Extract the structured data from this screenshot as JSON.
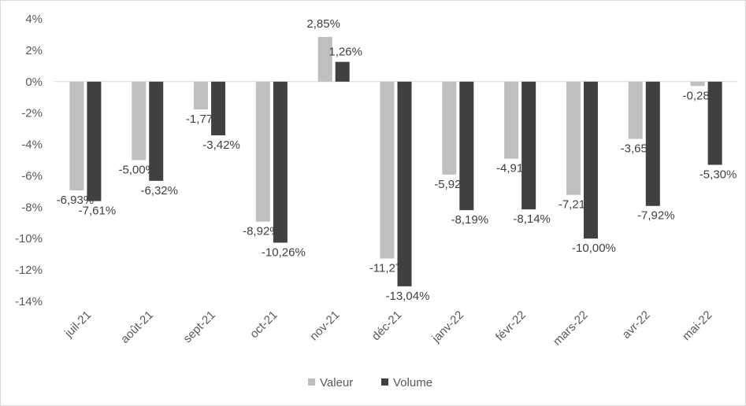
{
  "chart_data": {
    "type": "bar",
    "categories": [
      "juil-21",
      "août-21",
      "sept-21",
      "oct-21",
      "nov-21",
      "déc-21",
      "janv-22",
      "févr-22",
      "mars-22",
      "avr-22",
      "mai-22"
    ],
    "series": [
      {
        "name": "Valeur",
        "color": "#bfbfbf",
        "values": [
          -6.93,
          -5.0,
          -1.77,
          -8.92,
          2.85,
          -11.27,
          -5.92,
          -4.91,
          -7.21,
          -3.65,
          -0.28
        ],
        "labels": [
          "-6,93%",
          "-5,00%",
          "-1,77",
          "-8,92%",
          "2,85%",
          "-11,27",
          "-5,92",
          "-4,91",
          "-7,21",
          "-3,65",
          "-0,28"
        ]
      },
      {
        "name": "Volume",
        "color": "#404040",
        "values": [
          -7.61,
          -6.32,
          -3.42,
          -10.26,
          1.26,
          -13.04,
          -8.19,
          -8.14,
          -10.0,
          -7.92,
          -5.3
        ],
        "labels": [
          "-7,61%",
          "-6,32%",
          "-3,42%",
          "-10,26%",
          "1,26%",
          "-13,04%",
          "-8,19%",
          "-8,14%",
          "-10,00%",
          "-7,92%",
          "-5,30%"
        ]
      }
    ],
    "yticks": [
      "4%",
      "2%",
      "0%",
      "-2%",
      "-4%",
      "-6%",
      "-8%",
      "-10%",
      "-12%",
      "-14%"
    ],
    "ylim": [
      -14,
      4
    ],
    "title": "",
    "xlabel": "",
    "ylabel": "",
    "legend": "bottom",
    "grid": false
  }
}
